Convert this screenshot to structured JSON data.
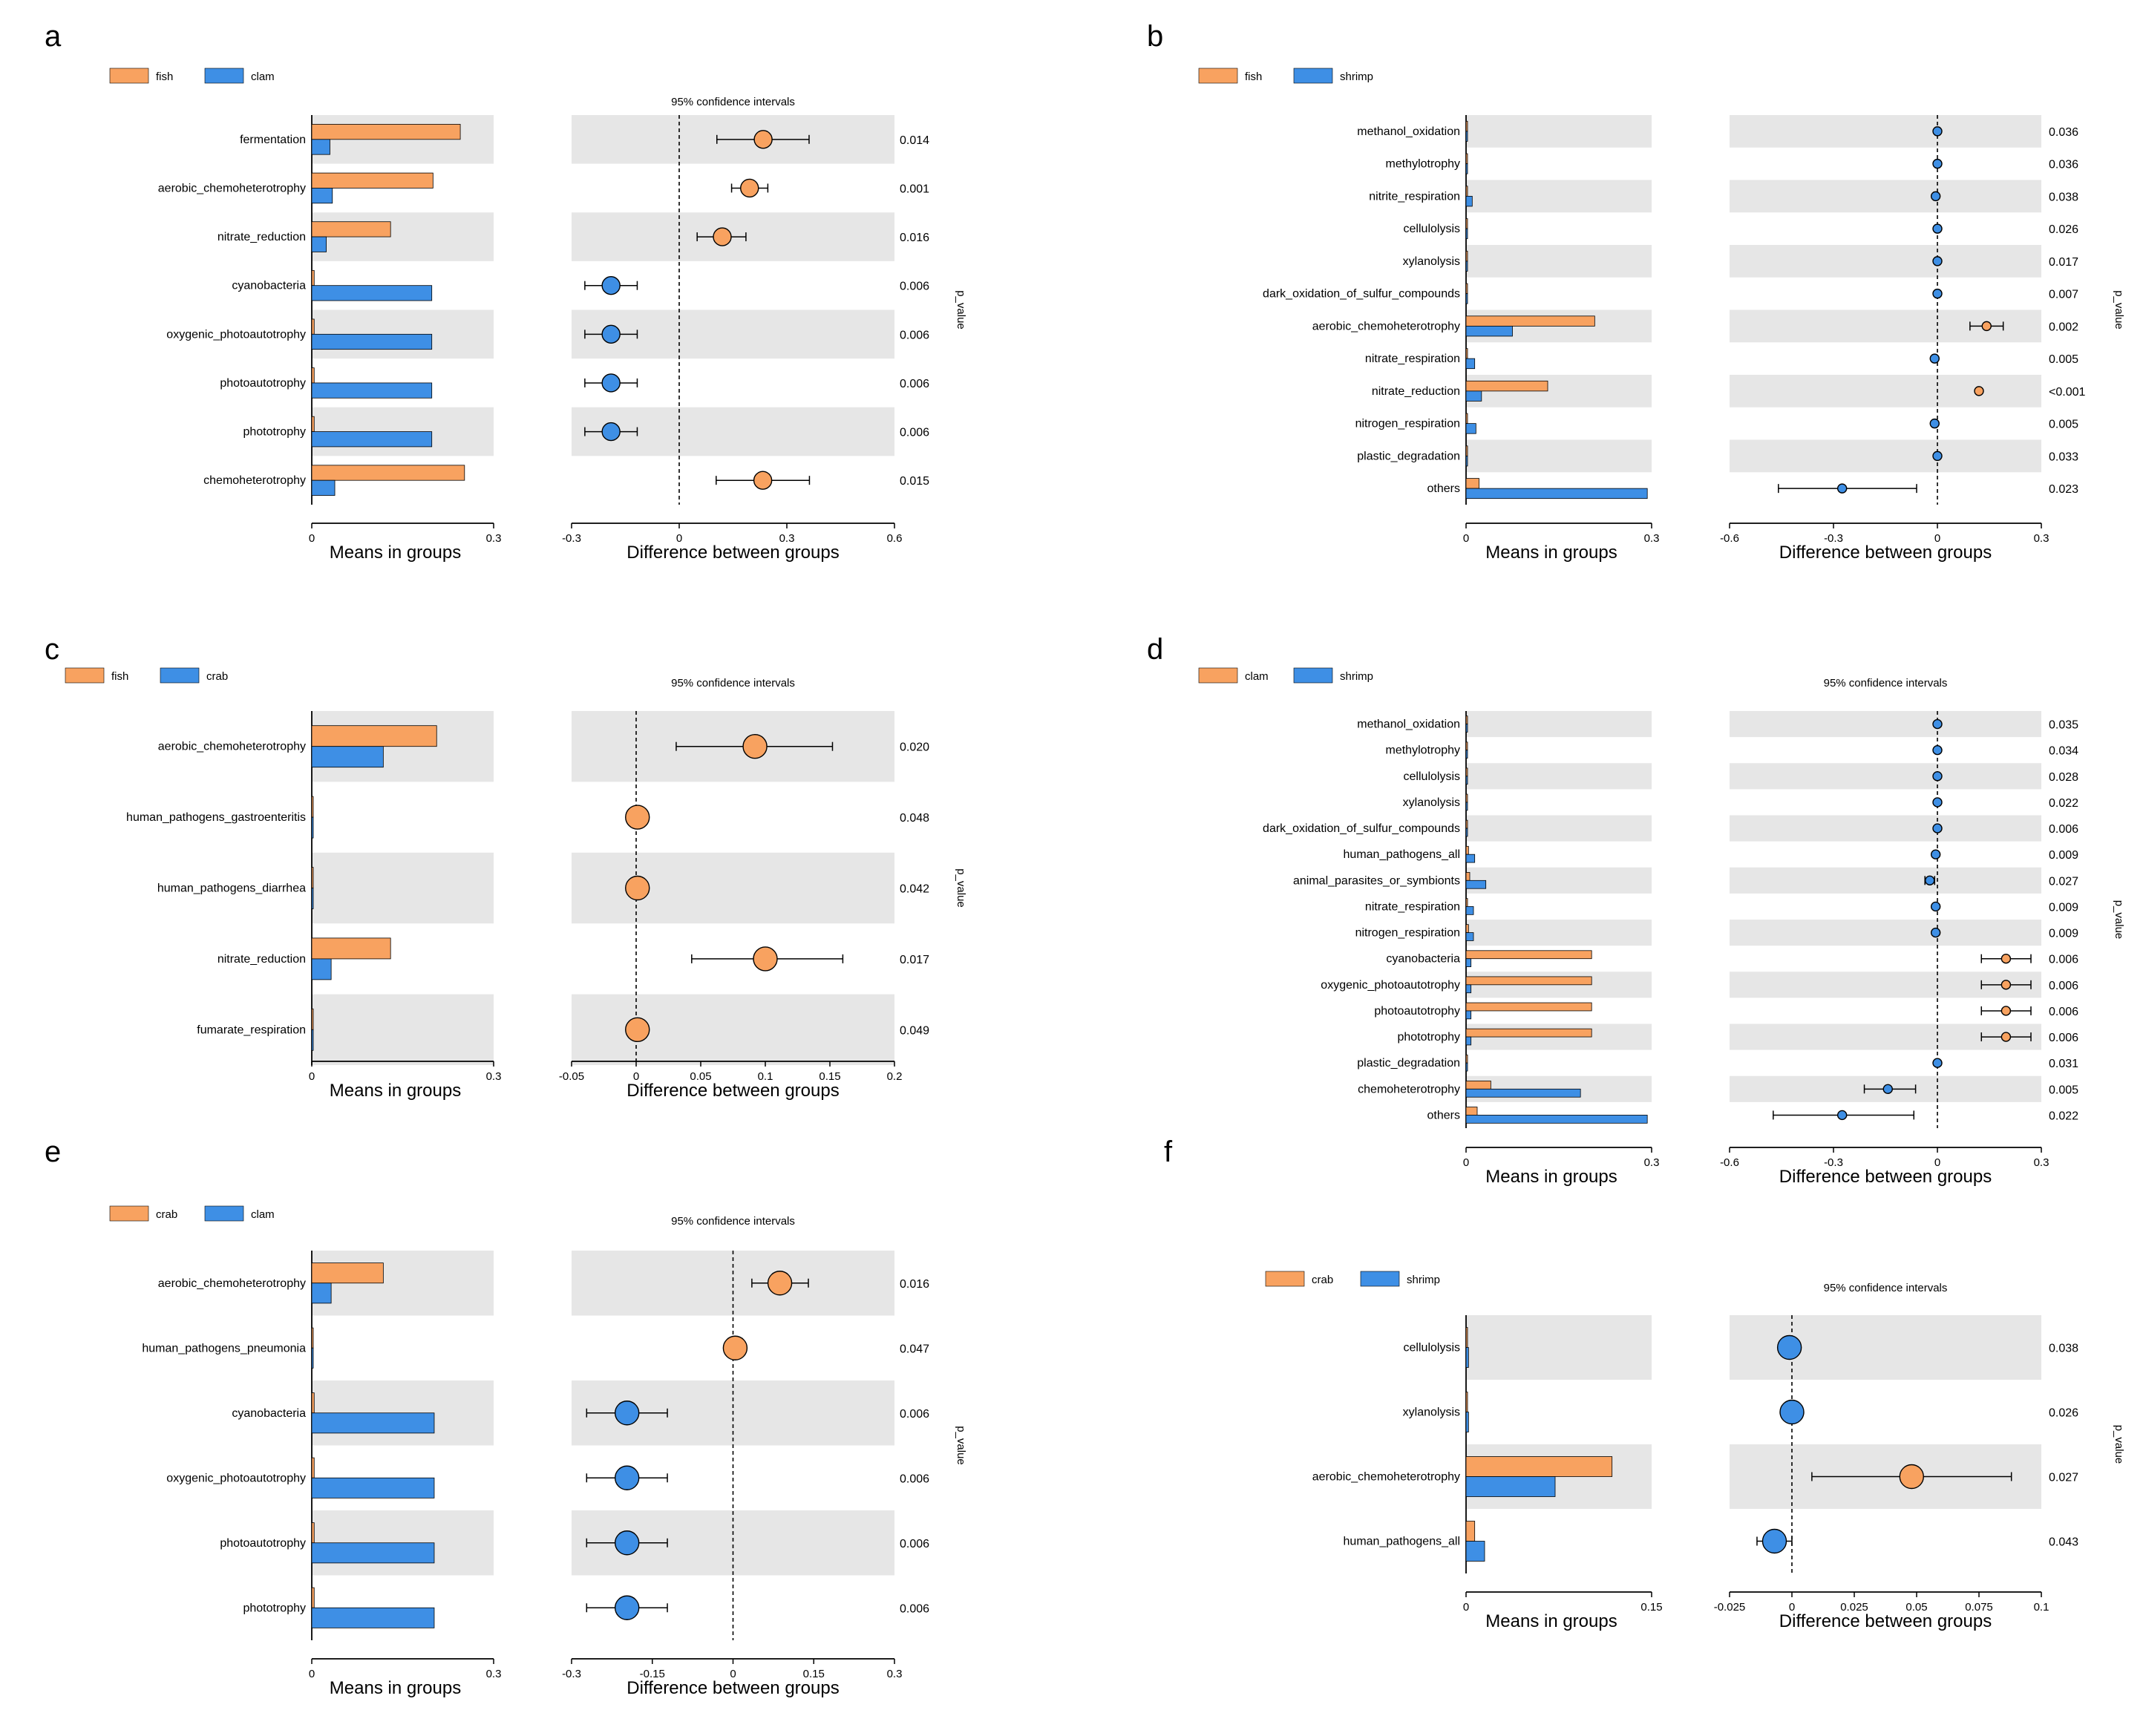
{
  "colors": {
    "orange": "#F8A260",
    "blue": "#3E8FE5",
    "band": "#E6E6E6"
  },
  "common": {
    "ci_title": "95% confidence intervals",
    "means_title": "Means in groups",
    "diff_title": "Difference between groups",
    "pvalue_title": "p_value"
  },
  "chart_data": [
    {
      "panel": "a",
      "type": "bar",
      "groups": [
        "fish",
        "clam"
      ],
      "categories": [
        "fermentation",
        "aerobic_chemoheterotrophy",
        "nitrate_reduction",
        "cyanobacteria",
        "oxygenic_photoautotrophy",
        "photoautotrophy",
        "phototrophy",
        "chemoheterotrophy"
      ],
      "series": [
        {
          "name": "fish",
          "values": [
            0.245,
            0.2,
            0.13,
            0.004,
            0.004,
            0.004,
            0.004,
            0.252
          ]
        },
        {
          "name": "clam",
          "values": [
            0.03,
            0.034,
            0.024,
            0.198,
            0.198,
            0.198,
            0.198,
            0.038
          ]
        }
      ],
      "diff": [
        0.234,
        0.196,
        0.12,
        -0.19,
        -0.19,
        -0.19,
        -0.19,
        0.233
      ],
      "ci_low": [
        0.105,
        0.146,
        0.05,
        -0.263,
        -0.263,
        -0.263,
        -0.263,
        0.103
      ],
      "ci_high": [
        0.362,
        0.247,
        0.186,
        -0.117,
        -0.117,
        -0.117,
        -0.117,
        0.363
      ],
      "p_values": [
        "0.014",
        "0.001",
        "0.016",
        "0.006",
        "0.006",
        "0.006",
        "0.006",
        "0.015"
      ],
      "means_range": [
        0,
        0.3
      ],
      "means_ticks": [
        0,
        0.3
      ],
      "means_tick_labels": [
        "0",
        "0.3"
      ],
      "diff_range": [
        -0.3,
        0.6
      ],
      "diff_ticks": [
        -0.3,
        0,
        0.3,
        0.6
      ],
      "diff_tick_labels": [
        "-0.3",
        "0",
        "0.3",
        "0.6"
      ]
    },
    {
      "panel": "b",
      "type": "bar",
      "groups": [
        "fish",
        "shrimp"
      ],
      "categories": [
        "methanol_oxidation",
        "methylotrophy",
        "nitrite_respiration",
        "cellulolysis",
        "xylanolysis",
        "dark_oxidation_of_sulfur_compounds",
        "aerobic_chemoheterotrophy",
        "nitrate_respiration",
        "nitrate_reduction",
        "nitrogen_respiration",
        "plastic_degradation",
        "others"
      ],
      "series": [
        {
          "name": "fish",
          "values": [
            0.002,
            0.002,
            0.002,
            0.002,
            0.002,
            0.002,
            0.208,
            0.002,
            0.132,
            0.002,
            0.002,
            0.021
          ]
        },
        {
          "name": "shrimp",
          "values": [
            0.002,
            0.002,
            0.01,
            0.002,
            0.002,
            0.002,
            0.075,
            0.014,
            0.025,
            0.016,
            0.002,
            0.293
          ]
        }
      ],
      "diff": [
        0.0,
        0.0,
        -0.005,
        0.0,
        0.0,
        0.0,
        0.142,
        -0.008,
        0.12,
        -0.008,
        0.0,
        -0.275
      ],
      "ci_low": [
        -0.006,
        -0.006,
        -0.011,
        -0.006,
        -0.006,
        -0.006,
        0.094,
        -0.014,
        0.115,
        -0.014,
        -0.006,
        -0.459
      ],
      "ci_high": [
        0.006,
        0.006,
        0.001,
        0.006,
        0.006,
        0.006,
        0.19,
        -0.002,
        0.125,
        -0.002,
        0.006,
        -0.06
      ],
      "p_values": [
        "0.036",
        "0.036",
        "0.038",
        "0.026",
        "0.017",
        "0.007",
        "0.002",
        "0.005",
        "<0.001",
        "0.005",
        "0.033",
        "0.023"
      ],
      "means_range": [
        0,
        0.3
      ],
      "means_ticks": [
        0,
        0.3
      ],
      "means_tick_labels": [
        "0",
        "0.3"
      ],
      "diff_range": [
        -0.6,
        0.3
      ],
      "diff_ticks": [
        -0.6,
        -0.3,
        0,
        0.3
      ],
      "diff_tick_labels": [
        "-0.6",
        "-0.3",
        "0",
        "0.3"
      ]
    },
    {
      "panel": "c",
      "type": "bar",
      "groups": [
        "fish",
        "crab"
      ],
      "categories": [
        "aerobic_chemoheterotrophy",
        "human_pathogens_gastroenteritis",
        "human_pathogens_diarrhea",
        "nitrate_reduction",
        "fumarate_respiration"
      ],
      "series": [
        {
          "name": "fish",
          "values": [
            0.206,
            0.002,
            0.002,
            0.13,
            0.002
          ]
        },
        {
          "name": "crab",
          "values": [
            0.118,
            0.0,
            0.0,
            0.032,
            0.0
          ]
        }
      ],
      "diff": [
        0.092,
        0.001,
        0.001,
        0.1,
        0.001
      ],
      "ci_low": [
        0.031,
        -0.004,
        -0.004,
        0.043,
        -0.004
      ],
      "ci_high": [
        0.152,
        0.006,
        0.006,
        0.16,
        0.006
      ],
      "p_values": [
        "0.020",
        "0.048",
        "0.042",
        "0.017",
        "0.049"
      ],
      "means_range": [
        0,
        0.3
      ],
      "means_ticks": [
        0,
        0.3
      ],
      "means_tick_labels": [
        "0",
        "0.3"
      ],
      "diff_range": [
        -0.05,
        0.2
      ],
      "diff_ticks": [
        -0.05,
        0,
        0.05,
        0.1,
        0.15,
        0.2
      ],
      "diff_tick_labels": [
        "-0.05",
        "0",
        "0.05",
        "0.1",
        "0.15",
        "0.2"
      ]
    },
    {
      "panel": "d",
      "type": "bar",
      "groups": [
        "clam",
        "shrimp"
      ],
      "categories": [
        "methanol_oxidation",
        "methylotrophy",
        "cellulolysis",
        "xylanolysis",
        "dark_oxidation_of_sulfur_compounds",
        "human_pathogens_all",
        "animal_parasites_or_symbionts",
        "nitrate_respiration",
        "nitrogen_respiration",
        "cyanobacteria",
        "oxygenic_photoautotrophy",
        "photoautotrophy",
        "phototrophy",
        "plastic_degradation",
        "chemoheterotrophy",
        "others"
      ],
      "series": [
        {
          "name": "clam",
          "values": [
            0.002,
            0.002,
            0.002,
            0.002,
            0.002,
            0.004,
            0.006,
            0.002,
            0.004,
            0.203,
            0.203,
            0.203,
            0.203,
            0.002,
            0.04,
            0.018
          ]
        },
        {
          "name": "shrimp",
          "values": [
            0.002,
            0.002,
            0.002,
            0.002,
            0.002,
            0.014,
            0.032,
            0.012,
            0.012,
            0.008,
            0.008,
            0.008,
            0.008,
            0.002,
            0.185,
            0.293
          ]
        }
      ],
      "diff": [
        0.0,
        0.0,
        0.0,
        0.0,
        0.0,
        -0.005,
        -0.022,
        -0.005,
        -0.005,
        0.198,
        0.198,
        0.198,
        0.198,
        0.0,
        -0.143,
        -0.275
      ],
      "ci_low": [
        -0.005,
        -0.005,
        -0.005,
        -0.005,
        -0.005,
        -0.01,
        -0.036,
        -0.01,
        -0.01,
        0.127,
        0.127,
        0.127,
        0.127,
        -0.005,
        -0.211,
        -0.474
      ],
      "ci_high": [
        0.005,
        0.005,
        0.005,
        0.005,
        0.005,
        0.0,
        -0.008,
        0.0,
        0.0,
        0.27,
        0.27,
        0.27,
        0.27,
        0.005,
        -0.063,
        -0.068
      ],
      "p_values": [
        "0.035",
        "0.034",
        "0.028",
        "0.022",
        "0.006",
        "0.009",
        "0.027",
        "0.009",
        "0.009",
        "0.006",
        "0.006",
        "0.006",
        "0.006",
        "0.031",
        "0.005",
        "0.022"
      ],
      "means_range": [
        0,
        0.3
      ],
      "means_ticks": [
        0,
        0.3
      ],
      "means_tick_labels": [
        "0",
        "0.3"
      ],
      "diff_range": [
        -0.6,
        0.3
      ],
      "diff_ticks": [
        -0.6,
        -0.3,
        0,
        0.3
      ],
      "diff_tick_labels": [
        "-0.6",
        "-0.3",
        "0",
        "0.3"
      ]
    },
    {
      "panel": "e",
      "type": "bar",
      "groups": [
        "crab",
        "clam"
      ],
      "categories": [
        "aerobic_chemoheterotrophy",
        "human_pathogens_pneumonia",
        "cyanobacteria",
        "oxygenic_photoautotrophy",
        "photoautotrophy",
        "phototrophy"
      ],
      "series": [
        {
          "name": "crab",
          "values": [
            0.118,
            0.002,
            0.004,
            0.004,
            0.004,
            0.004
          ]
        },
        {
          "name": "clam",
          "values": [
            0.032,
            0.0,
            0.202,
            0.202,
            0.202,
            0.202
          ]
        }
      ],
      "diff": [
        0.087,
        0.004,
        -0.197,
        -0.197,
        -0.197,
        -0.197
      ],
      "ci_low": [
        0.035,
        -0.004,
        -0.272,
        -0.272,
        -0.272,
        -0.272
      ],
      "ci_high": [
        0.14,
        0.012,
        -0.122,
        -0.122,
        -0.122,
        -0.122
      ],
      "p_values": [
        "0.016",
        "0.047",
        "0.006",
        "0.006",
        "0.006",
        "0.006"
      ],
      "means_range": [
        0,
        0.3
      ],
      "means_ticks": [
        0,
        0.3
      ],
      "means_tick_labels": [
        "0",
        "0.3"
      ],
      "diff_range": [
        -0.3,
        0.3
      ],
      "diff_ticks": [
        -0.3,
        -0.15,
        0,
        0.15,
        0.3
      ],
      "diff_tick_labels": [
        "-0.3",
        "-0.15",
        "0",
        "0.15",
        "0.3"
      ]
    },
    {
      "panel": "f",
      "type": "bar",
      "groups": [
        "crab",
        "shrimp"
      ],
      "categories": [
        "cellulolysis",
        "xylanolysis",
        "aerobic_chemoheterotrophy",
        "human_pathogens_all"
      ],
      "series": [
        {
          "name": "crab",
          "values": [
            0.0,
            0.0,
            0.118,
            0.007
          ]
        },
        {
          "name": "shrimp",
          "values": [
            0.002,
            0.002,
            0.072,
            0.015
          ]
        }
      ],
      "diff": [
        -0.001,
        0.0,
        0.048,
        -0.007
      ],
      "ci_low": [
        -0.004,
        -0.003,
        0.008,
        -0.014
      ],
      "ci_high": [
        0.002,
        0.003,
        0.088,
        0.0
      ],
      "p_values": [
        "0.038",
        "0.026",
        "0.027",
        "0.043"
      ],
      "means_range": [
        0,
        0.15
      ],
      "means_ticks": [
        0,
        0.15
      ],
      "means_tick_labels": [
        "0",
        "0.15"
      ],
      "diff_range": [
        -0.025,
        0.1
      ],
      "diff_ticks": [
        -0.025,
        0,
        0.025,
        0.05,
        0.075,
        0.1
      ],
      "diff_tick_labels": [
        "-0.025",
        "0",
        "0.025",
        "0.05",
        "0.075",
        "0.1"
      ]
    }
  ]
}
